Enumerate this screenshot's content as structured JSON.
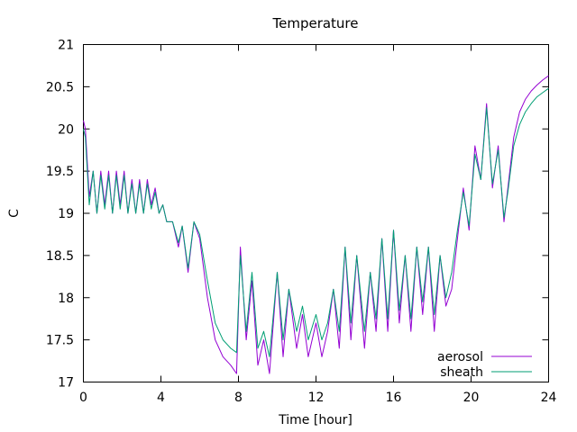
{
  "chart_data": {
    "type": "line",
    "title": "Temperature",
    "xlabel": "Time [hour]",
    "ylabel": "C",
    "xlim": [
      0,
      24
    ],
    "ylim": [
      17,
      21
    ],
    "xticks": [
      "0",
      "4",
      "8",
      "12",
      "16",
      "20",
      "24"
    ],
    "yticks": [
      "17",
      "17.5",
      "18",
      "18.5",
      "19",
      "19.5",
      "20",
      "20.5",
      "21"
    ],
    "grid": false,
    "legend_position": "bottom-right",
    "series": [
      {
        "name": "aerosol",
        "color": "#9400d3",
        "x": [
          0,
          0.1,
          0.3,
          0.5,
          0.7,
          0.9,
          1.1,
          1.3,
          1.5,
          1.7,
          1.9,
          2.1,
          2.3,
          2.5,
          2.7,
          2.9,
          3.1,
          3.3,
          3.5,
          3.7,
          3.9,
          4.1,
          4.3,
          4.6,
          4.9,
          5.1,
          5.4,
          5.7,
          6.0,
          6.4,
          6.8,
          7.2,
          7.6,
          7.9,
          8.1,
          8.4,
          8.7,
          9.0,
          9.3,
          9.6,
          10.0,
          10.3,
          10.6,
          11.0,
          11.3,
          11.6,
          12.0,
          12.3,
          12.6,
          12.9,
          13.2,
          13.5,
          13.8,
          14.1,
          14.5,
          14.8,
          15.1,
          15.4,
          15.7,
          16.0,
          16.3,
          16.6,
          16.9,
          17.2,
          17.5,
          17.8,
          18.1,
          18.4,
          18.7,
          19.0,
          19.3,
          19.6,
          19.9,
          20.2,
          20.5,
          20.8,
          21.1,
          21.4,
          21.7,
          21.9,
          22.2,
          22.5,
          22.8,
          23.1,
          23.4,
          23.7,
          24.0
        ],
        "y": [
          20.1,
          20.0,
          19.2,
          19.5,
          19.0,
          19.5,
          19.1,
          19.5,
          19.0,
          19.5,
          19.1,
          19.5,
          19.0,
          19.4,
          19.0,
          19.4,
          19.0,
          19.4,
          19.1,
          19.3,
          19.0,
          19.1,
          18.9,
          18.9,
          18.6,
          18.85,
          18.3,
          18.9,
          18.7,
          18.0,
          17.5,
          17.3,
          17.2,
          17.1,
          18.6,
          17.5,
          18.2,
          17.2,
          17.5,
          17.1,
          18.3,
          17.3,
          18.1,
          17.4,
          17.8,
          17.3,
          17.7,
          17.3,
          17.6,
          18.1,
          17.4,
          18.6,
          17.5,
          18.5,
          17.4,
          18.3,
          17.6,
          18.7,
          17.6,
          18.8,
          17.7,
          18.5,
          17.6,
          18.6,
          17.8,
          18.6,
          17.6,
          18.5,
          17.9,
          18.1,
          18.7,
          19.3,
          18.8,
          19.8,
          19.4,
          20.3,
          19.3,
          19.8,
          18.9,
          19.3,
          19.9,
          20.2,
          20.35,
          20.45,
          20.52,
          20.58,
          20.63
        ]
      },
      {
        "name": "sheath",
        "color": "#009e73",
        "x": [
          0,
          0.1,
          0.3,
          0.5,
          0.7,
          0.9,
          1.1,
          1.3,
          1.5,
          1.7,
          1.9,
          2.1,
          2.3,
          2.5,
          2.7,
          2.9,
          3.1,
          3.3,
          3.5,
          3.7,
          3.9,
          4.1,
          4.3,
          4.6,
          4.9,
          5.1,
          5.4,
          5.7,
          6.0,
          6.4,
          6.8,
          7.2,
          7.6,
          7.9,
          8.1,
          8.4,
          8.7,
          9.0,
          9.3,
          9.6,
          10.0,
          10.3,
          10.6,
          11.0,
          11.3,
          11.6,
          12.0,
          12.3,
          12.6,
          12.9,
          13.2,
          13.5,
          13.8,
          14.1,
          14.5,
          14.8,
          15.1,
          15.4,
          15.7,
          16.0,
          16.3,
          16.6,
          16.9,
          17.2,
          17.5,
          17.8,
          18.1,
          18.4,
          18.7,
          19.0,
          19.3,
          19.6,
          19.9,
          20.2,
          20.5,
          20.8,
          21.1,
          21.4,
          21.7,
          21.9,
          22.2,
          22.5,
          22.8,
          23.1,
          23.4,
          23.7,
          24.0
        ],
        "y": [
          20.0,
          19.9,
          19.1,
          19.5,
          19.0,
          19.45,
          19.05,
          19.45,
          19.0,
          19.45,
          19.05,
          19.45,
          19.0,
          19.35,
          19.0,
          19.35,
          19.0,
          19.35,
          19.05,
          19.25,
          19.0,
          19.1,
          18.9,
          18.9,
          18.65,
          18.85,
          18.35,
          18.9,
          18.75,
          18.2,
          17.7,
          17.5,
          17.4,
          17.35,
          18.5,
          17.6,
          18.3,
          17.4,
          17.6,
          17.3,
          18.3,
          17.5,
          18.1,
          17.6,
          17.9,
          17.5,
          17.8,
          17.5,
          17.7,
          18.1,
          17.6,
          18.6,
          17.7,
          18.5,
          17.6,
          18.3,
          17.75,
          18.7,
          17.75,
          18.8,
          17.85,
          18.5,
          17.75,
          18.6,
          17.95,
          18.6,
          17.8,
          18.5,
          18.0,
          18.3,
          18.8,
          19.25,
          18.85,
          19.7,
          19.4,
          20.25,
          19.35,
          19.75,
          18.95,
          19.25,
          19.8,
          20.05,
          20.2,
          20.3,
          20.38,
          20.43,
          20.48
        ]
      }
    ]
  }
}
